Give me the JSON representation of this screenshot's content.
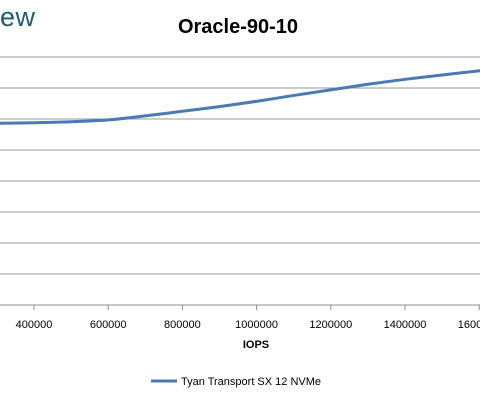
{
  "brand": {
    "text": "ew",
    "color": "#1e5a78"
  },
  "chart_data": {
    "type": "line",
    "title": "Oracle-90-10",
    "xlabel": "IOPS",
    "ylabel": "",
    "x_ticks": [
      400000,
      600000,
      800000,
      1000000,
      1200000,
      1400000,
      1600000
    ],
    "x_tick_labels": [
      "400000",
      "600000",
      "800000",
      "1000000",
      "1200000",
      "1400000",
      "1600000"
    ],
    "xlim": [
      300000,
      1620000
    ],
    "grid": true,
    "legend": "bottom",
    "series": [
      {
        "name": "Tyan Transport SX 12 NVMe",
        "color": "#4a7ab5",
        "x": [
          300000,
          400000,
          500000,
          600000,
          700000,
          800000,
          900000,
          1000000,
          1100000,
          1200000,
          1300000,
          1400000,
          1500000,
          1620000
        ],
        "y": [
          5.86,
          5.88,
          5.91,
          5.97,
          6.1,
          6.25,
          6.4,
          6.57,
          6.76,
          6.94,
          7.12,
          7.28,
          7.42,
          7.58
        ]
      }
    ]
  }
}
